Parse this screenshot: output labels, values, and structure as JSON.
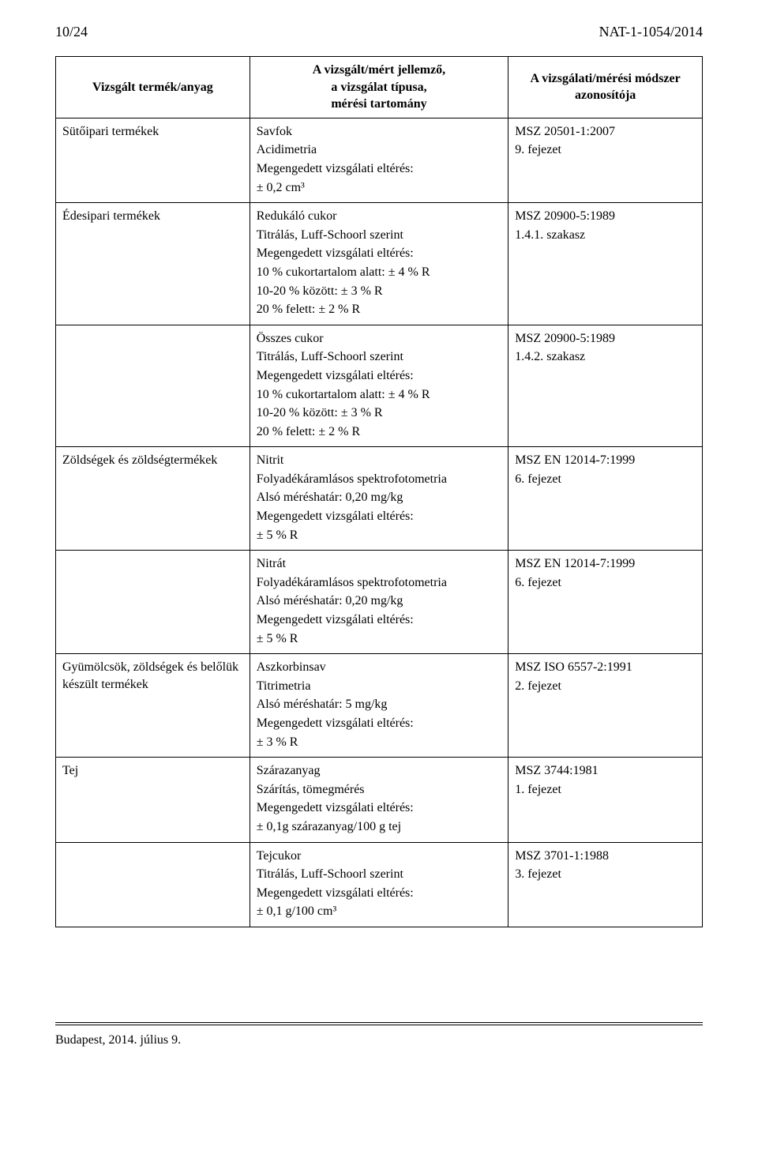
{
  "header": {
    "page_no": "10/24",
    "doc_ref": "NAT-1-1054/2014"
  },
  "table": {
    "headers": {
      "col1": "Vizsgált termék/anyag",
      "col2_l1": "A vizsgált/mért jellemző,",
      "col2_l2": "a vizsgálat típusa,",
      "col2_l3": "mérési tartomány",
      "col3_l1": "A vizsgálati/mérési módszer",
      "col3_l2": "azonosítója"
    },
    "rows": [
      {
        "c1": "Sütőipari termékek",
        "c2": [
          "Savfok",
          "Acidimetria",
          "Megengedett vizsgálati eltérés:",
          "± 0,2  cm³"
        ],
        "c3": [
          "MSZ 20501-1:2007",
          "9. fejezet"
        ]
      },
      {
        "c1": "Édesipari termékek",
        "c2": [
          "Redukáló cukor",
          "Titrálás, Luff-Schoorl szerint",
          "Megengedett vizsgálati eltérés:",
          "10 % cukortartalom alatt:   ± 4 % R",
          "10-20 %  között: ±  3 % R",
          "20 % felett: ±  2 % R"
        ],
        "c3": [
          "MSZ 20900-5:1989",
          "1.4.1. szakasz"
        ]
      },
      {
        "c1": "",
        "c2": [
          "Összes cukor",
          "Titrálás, Luff-Schoorl szerint",
          "Megengedett vizsgálati eltérés:",
          "10 % cukortartalom alatt:  ± 4 % R",
          "10-20 %  között:  ± 3 % R",
          "20 % felett: ± 2 % R"
        ],
        "c3": [
          "MSZ 20900-5:1989",
          "1.4.2. szakasz"
        ]
      },
      {
        "c1": "Zöldségek és zöldségtermékek",
        "c2": [
          "Nitrit",
          "Folyadékáramlásos spektrofotometria",
          "Alsó méréshatár: 0,20 mg/kg",
          "Megengedett vizsgálati eltérés:",
          "± 5 % R"
        ],
        "c3": [
          "MSZ EN 12014-7:1999",
          "6. fejezet"
        ]
      },
      {
        "c1": "",
        "c2": [
          "Nitrát",
          "Folyadékáramlásos spektrofotometria",
          "Alsó méréshatár: 0,20 mg/kg",
          "Megengedett vizsgálati eltérés:",
          "± 5 % R"
        ],
        "c3": [
          "MSZ EN 12014-7:1999",
          "6. fejezet"
        ]
      },
      {
        "c1": "Gyümölcsök, zöldségek és belőlük készült termékek",
        "c2": [
          "Aszkorbinsav",
          "Titrimetria",
          "Alsó méréshatár: 5 mg/kg",
          "Megengedett vizsgálati eltérés:",
          "± 3 % R"
        ],
        "c3": [
          "MSZ ISO 6557-2:1991",
          "2. fejezet"
        ]
      },
      {
        "c1": "Tej",
        "c2": [
          "Szárazanyag",
          "Szárítás, tömegmérés",
          "Megengedett vizsgálati eltérés:",
          "± 0,1g szárazanyag/100 g tej"
        ],
        "c3": [
          "MSZ 3744:1981",
          "1. fejezet"
        ]
      },
      {
        "c1": "",
        "c2": [
          "Tejcukor",
          "Titrálás, Luff-Schoorl szerint",
          "Megengedett vizsgálati eltérés:",
          "± 0,1 g/100 cm³"
        ],
        "c3": [
          "MSZ 3701-1:1988",
          "3. fejezet"
        ]
      }
    ]
  },
  "footer": "Budapest, 2014. július 9."
}
